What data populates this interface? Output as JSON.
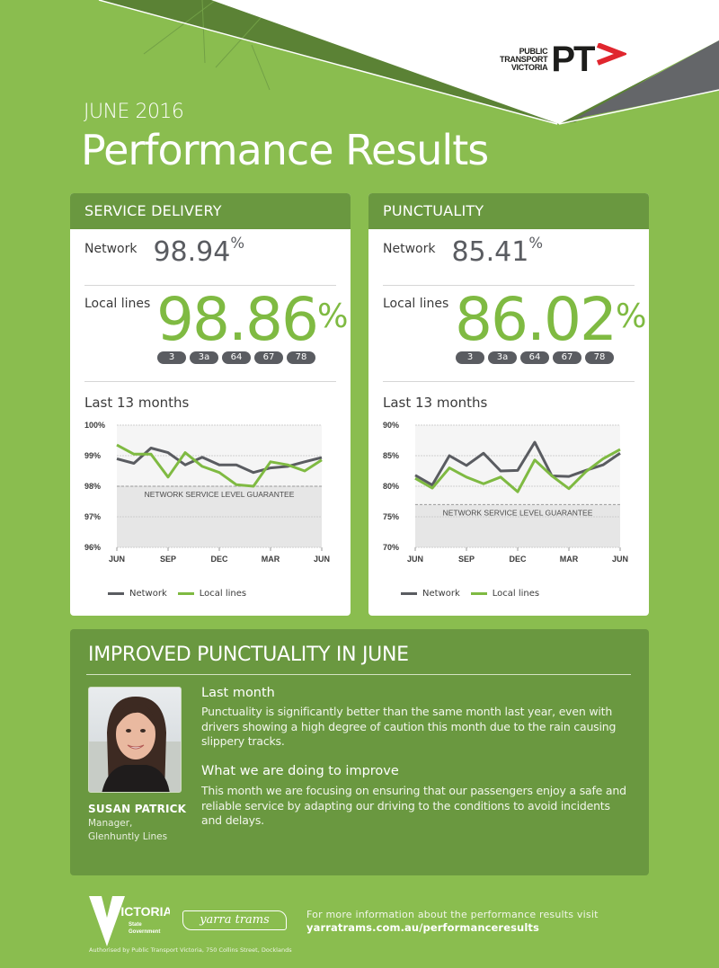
{
  "colors": {
    "background": "#8abd4f",
    "panel_header": "#6a9840",
    "network_line": "#5a5c61",
    "local_line": "#7fba42",
    "accent_red": "#e0262e"
  },
  "brand": {
    "logo_line1": "PUBLIC",
    "logo_line2": "TRANSPORT",
    "logo_line3": "VICTORIA",
    "logo_mark": "PT",
    "logo_icon": "chevron-right-icon"
  },
  "header": {
    "month": "JUNE 2016",
    "title": "Performance Results"
  },
  "service_delivery": {
    "title": "SERVICE DELIVERY",
    "network_label": "Network",
    "network_value": "98.94",
    "local_label": "Local lines",
    "local_value": "98.86",
    "percent": "%",
    "routes": [
      "3",
      "3a",
      "64",
      "67",
      "78"
    ],
    "chart_label": "Last 13 months"
  },
  "punctuality": {
    "title": "PUNCTUALITY",
    "network_label": "Network",
    "network_value": "85.41",
    "local_label": "Local lines",
    "local_value": "86.02",
    "percent": "%",
    "routes": [
      "3",
      "3a",
      "64",
      "67",
      "78"
    ],
    "chart_label": "Last 13 months"
  },
  "legend": {
    "network": "Network",
    "local": "Local lines"
  },
  "chart_data": [
    {
      "type": "line",
      "title": "Service Delivery - Last 13 months",
      "xlabel": "",
      "ylabel": "",
      "x": [
        "JUN",
        "JUL",
        "AUG",
        "SEP",
        "OCT",
        "NOV",
        "DEC",
        "JAN",
        "FEB",
        "MAR",
        "APR",
        "MAY",
        "JUN"
      ],
      "x_tick_labels": [
        "JUN",
        "SEP",
        "DEC",
        "MAR",
        "JUN"
      ],
      "y_tick_labels": [
        "96%",
        "97%",
        "98%",
        "99%",
        "100%"
      ],
      "ylim": [
        96,
        100
      ],
      "grid": true,
      "legend_position": "bottom",
      "annotation": "NETWORK SERVICE LEVEL GUARANTEE",
      "threshold": 98,
      "series": [
        {
          "name": "Network",
          "color": "#5a5c61",
          "values": [
            98.9,
            98.75,
            99.25,
            99.1,
            98.7,
            98.95,
            98.7,
            98.7,
            98.45,
            98.6,
            98.65,
            98.8,
            98.94
          ]
        },
        {
          "name": "Local lines",
          "color": "#7fba42",
          "values": [
            99.35,
            99.05,
            99.05,
            98.3,
            99.1,
            98.65,
            98.45,
            98.05,
            98.0,
            98.8,
            98.7,
            98.5,
            98.86
          ]
        }
      ]
    },
    {
      "type": "line",
      "title": "Punctuality - Last 13 months",
      "xlabel": "",
      "ylabel": "",
      "x": [
        "JUN",
        "JUL",
        "AUG",
        "SEP",
        "OCT",
        "NOV",
        "DEC",
        "JAN",
        "FEB",
        "MAR",
        "APR",
        "MAY",
        "JUN"
      ],
      "x_tick_labels": [
        "JUN",
        "SEP",
        "DEC",
        "MAR",
        "JUN"
      ],
      "y_tick_labels": [
        "70%",
        "75%",
        "80%",
        "85%",
        "90%"
      ],
      "ylim": [
        70,
        90
      ],
      "grid": true,
      "legend_position": "bottom",
      "annotation": "NETWORK SERVICE LEVEL GUARANTEE",
      "threshold": 77,
      "series": [
        {
          "name": "Network",
          "color": "#5a5c61",
          "values": [
            81.8,
            80.2,
            85.0,
            83.4,
            85.4,
            82.5,
            82.6,
            87.2,
            81.7,
            81.6,
            82.6,
            83.5,
            85.41
          ]
        },
        {
          "name": "Local lines",
          "color": "#7fba42",
          "values": [
            81.3,
            79.7,
            83.0,
            81.5,
            80.4,
            81.5,
            79.1,
            84.3,
            81.7,
            79.6,
            82.4,
            84.5,
            86.02
          ]
        }
      ]
    }
  ],
  "improvement": {
    "title": "IMPROVED PUNCTUALITY IN JUNE",
    "person_name": "SUSAN PATRICK",
    "person_role_line1": "Manager,",
    "person_role_line2": "Glenhuntly Lines",
    "section1_heading": "Last month",
    "section1_body": "Punctuality is significantly better than the same month last year, even with drivers showing a high degree of caution this month due to the rain causing slippery tracks.",
    "section2_heading": "What we are doing to improve",
    "section2_body": "This month we are focusing on ensuring that our passengers enjoy a safe and reliable service by adapting our driving to the conditions to avoid incidents and delays."
  },
  "footer": {
    "vic_logo_text": "VICTORIA",
    "vic_logo_sub1": "State",
    "vic_logo_sub2": "Government",
    "yarra_logo": "yarra trams",
    "info_text": "For more information about the performance results visit",
    "url": "yarratrams.com.au/performanceresults",
    "authorised": "Authorised by Public Transport Victoria, 750 Collins Street, Docklands"
  }
}
